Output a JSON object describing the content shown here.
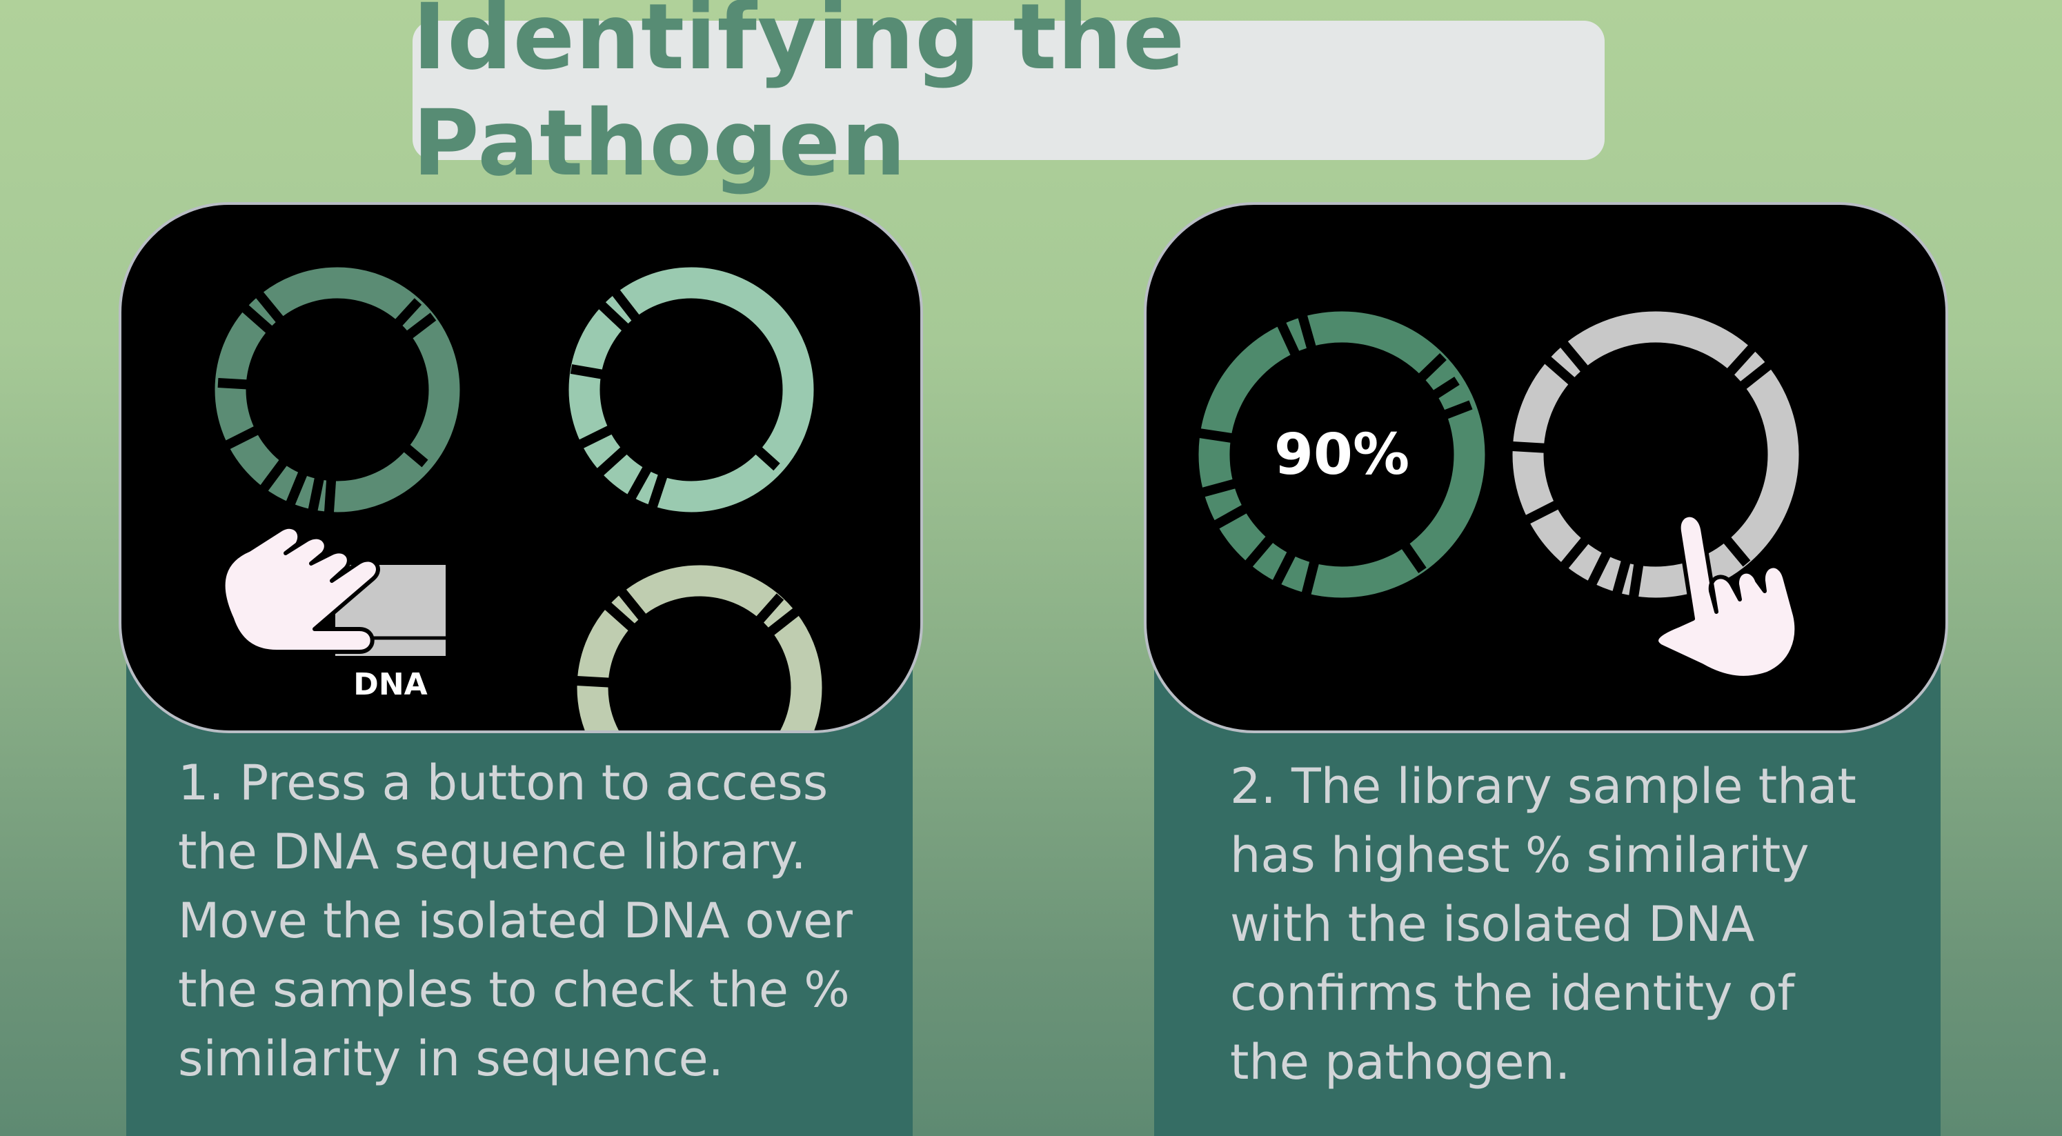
{
  "title": "Identifying the Pathogen",
  "step1": {
    "text": "1. Press a button to access\nthe DNA sequence library.\nMove the isolated DNA over\nthe samples to check the %\nsimilarity in sequence.",
    "dna_label": "DNA"
  },
  "step2": {
    "text": "2. The library sample that\nhas highest % similarity\nwith the isolated DNA\nconfirms the identity of\nthe pathogen.",
    "similarity": "90%"
  },
  "colors": {
    "plasmid_dark": "#5b8c74",
    "plasmid_mint": "#9acab0",
    "plasmid_sage": "#bfcdb0",
    "plasmid_green": "#4e8a6c",
    "plasmid_gray": "#c8c8c8",
    "hand": "#fbeff5"
  },
  "icons": [
    "pointing-hand-icon",
    "dna-sample-icon",
    "plasmid-ring-icon"
  ]
}
